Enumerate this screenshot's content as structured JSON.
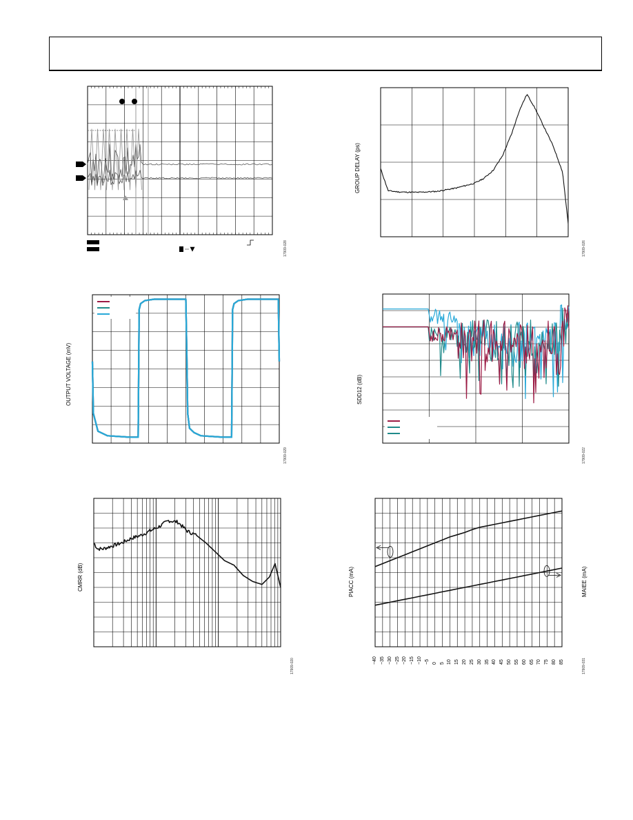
{
  "header": {
    "title": ""
  },
  "figures": {
    "scope": {
      "fig_id": "17909-028"
    },
    "group_delay": {
      "fig_id": "17909-026",
      "ylabel": "GROUP DELAY (ps)"
    },
    "pulse": {
      "fig_id": "17909-029",
      "ylabel": "OUTPUT VOLTAGE (mV)"
    },
    "sdd12": {
      "fig_id": "17909-022",
      "ylabel": "SDD12 (dB)"
    },
    "cmrr": {
      "fig_id": "17909-020",
      "ylabel": "CMRR (dB)"
    },
    "supply": {
      "fig_id": "17909-031",
      "ylabel_left": "PIACC (mA)",
      "ylabel_right": "MAIEE (mA)"
    }
  },
  "colors": {
    "black": "#111111",
    "blue": "#27a8d8",
    "teal": "#1f8a8a",
    "maroon": "#9b1b44",
    "gray": "#9a9a9a"
  },
  "chart_data": [
    {
      "type": "line",
      "title": "",
      "grid": true,
      "series": [
        {
          "name": "",
          "y": [
            -0.26,
            -0.1,
            -0.12,
            -0.1,
            -0.1
          ]
        }
      ]
    },
    {
      "type": "line",
      "title": "",
      "ylabel": "GROUP DELAY (ps)",
      "grid": true,
      "x": [
        0,
        0.04,
        0.1,
        0.2,
        0.3,
        0.4,
        0.5,
        0.55,
        0.6,
        0.65,
        0.7,
        0.74,
        0.78,
        0.82,
        0.87,
        0.92,
        0.97,
        1.0
      ],
      "series": [
        {
          "name": "",
          "values": [
            2.1,
            1.42,
            1.38,
            1.37,
            1.4,
            1.5,
            1.65,
            1.8,
            2.05,
            2.5,
            3.2,
            3.9,
            4.4,
            4.0,
            3.4,
            2.8,
            2.0,
            0.4
          ]
        }
      ]
    },
    {
      "type": "line",
      "title": "",
      "ylabel": "OUTPUT VOLTAGE (mV)",
      "grid": true,
      "legend": "top-left",
      "x": [
        0,
        0.005,
        0.03,
        0.08,
        0.2,
        0.245,
        0.25,
        0.258,
        0.28,
        0.33,
        0.5,
        0.505,
        0.51,
        0.52,
        0.545,
        0.58,
        0.7,
        0.745,
        0.75,
        0.758,
        0.78,
        0.83,
        0.995,
        1.0
      ],
      "series": [
        {
          "name": "",
          "values": [
            0.55,
            0.2,
            0.08,
            0.05,
            0.04,
            0.04,
            0.9,
            0.94,
            0.96,
            0.97,
            0.97,
            0.6,
            0.2,
            0.1,
            0.07,
            0.05,
            0.04,
            0.04,
            0.9,
            0.94,
            0.96,
            0.97,
            0.97,
            0.55
          ]
        }
      ]
    },
    {
      "type": "line",
      "title": "",
      "ylabel": "SDD12 (dB)",
      "grid": true,
      "legend": "bottom-left",
      "series": [
        {
          "name": "",
          "values": [
            0.78
          ]
        },
        {
          "name": "",
          "values": [
            0.78
          ]
        },
        {
          "name": "",
          "values": [
            0.9
          ]
        }
      ]
    },
    {
      "type": "line",
      "title": "",
      "ylabel": "CMRR (dB)",
      "grid": true,
      "xscale": "log",
      "x": [
        0,
        0.02,
        0.05,
        0.1,
        0.15,
        0.2,
        0.25,
        0.3,
        0.35,
        0.4,
        0.45,
        0.5,
        0.55,
        0.6,
        0.65,
        0.7,
        0.75,
        0.8,
        0.85,
        0.9,
        0.94,
        0.97,
        1.0
      ],
      "series": [
        {
          "name": "",
          "values": [
            0.7,
            0.66,
            0.66,
            0.68,
            0.7,
            0.73,
            0.75,
            0.78,
            0.81,
            0.85,
            0.84,
            0.78,
            0.75,
            0.7,
            0.64,
            0.58,
            0.55,
            0.48,
            0.44,
            0.42,
            0.47,
            0.56,
            0.4
          ]
        }
      ]
    },
    {
      "type": "line",
      "title": "",
      "ylabel": "PIACC (mA)",
      "y2label": "MAIEE (mA)",
      "grid": true,
      "x": [
        -40,
        -35,
        -30,
        -25,
        -20,
        -15,
        -10,
        -5,
        0,
        5,
        10,
        15,
        20,
        25,
        30,
        35,
        40,
        45,
        50,
        55,
        60,
        65,
        70,
        75,
        80,
        85
      ],
      "series": [
        {
          "name": "",
          "values": [
            0.54,
            0.56,
            0.58,
            0.6,
            0.62,
            0.64,
            0.66,
            0.68,
            0.7,
            0.72,
            0.74,
            0.755,
            0.77,
            0.79,
            0.805,
            0.815,
            0.825,
            0.835,
            0.845,
            0.855,
            0.865,
            0.875,
            0.885,
            0.895,
            0.905,
            0.915
          ]
        },
        {
          "name": "",
          "values": [
            0.28,
            0.29,
            0.3,
            0.31,
            0.32,
            0.33,
            0.34,
            0.35,
            0.36,
            0.37,
            0.38,
            0.39,
            0.4,
            0.41,
            0.42,
            0.43,
            0.44,
            0.45,
            0.46,
            0.47,
            0.48,
            0.49,
            0.5,
            0.51,
            0.52,
            0.53
          ]
        }
      ]
    }
  ]
}
